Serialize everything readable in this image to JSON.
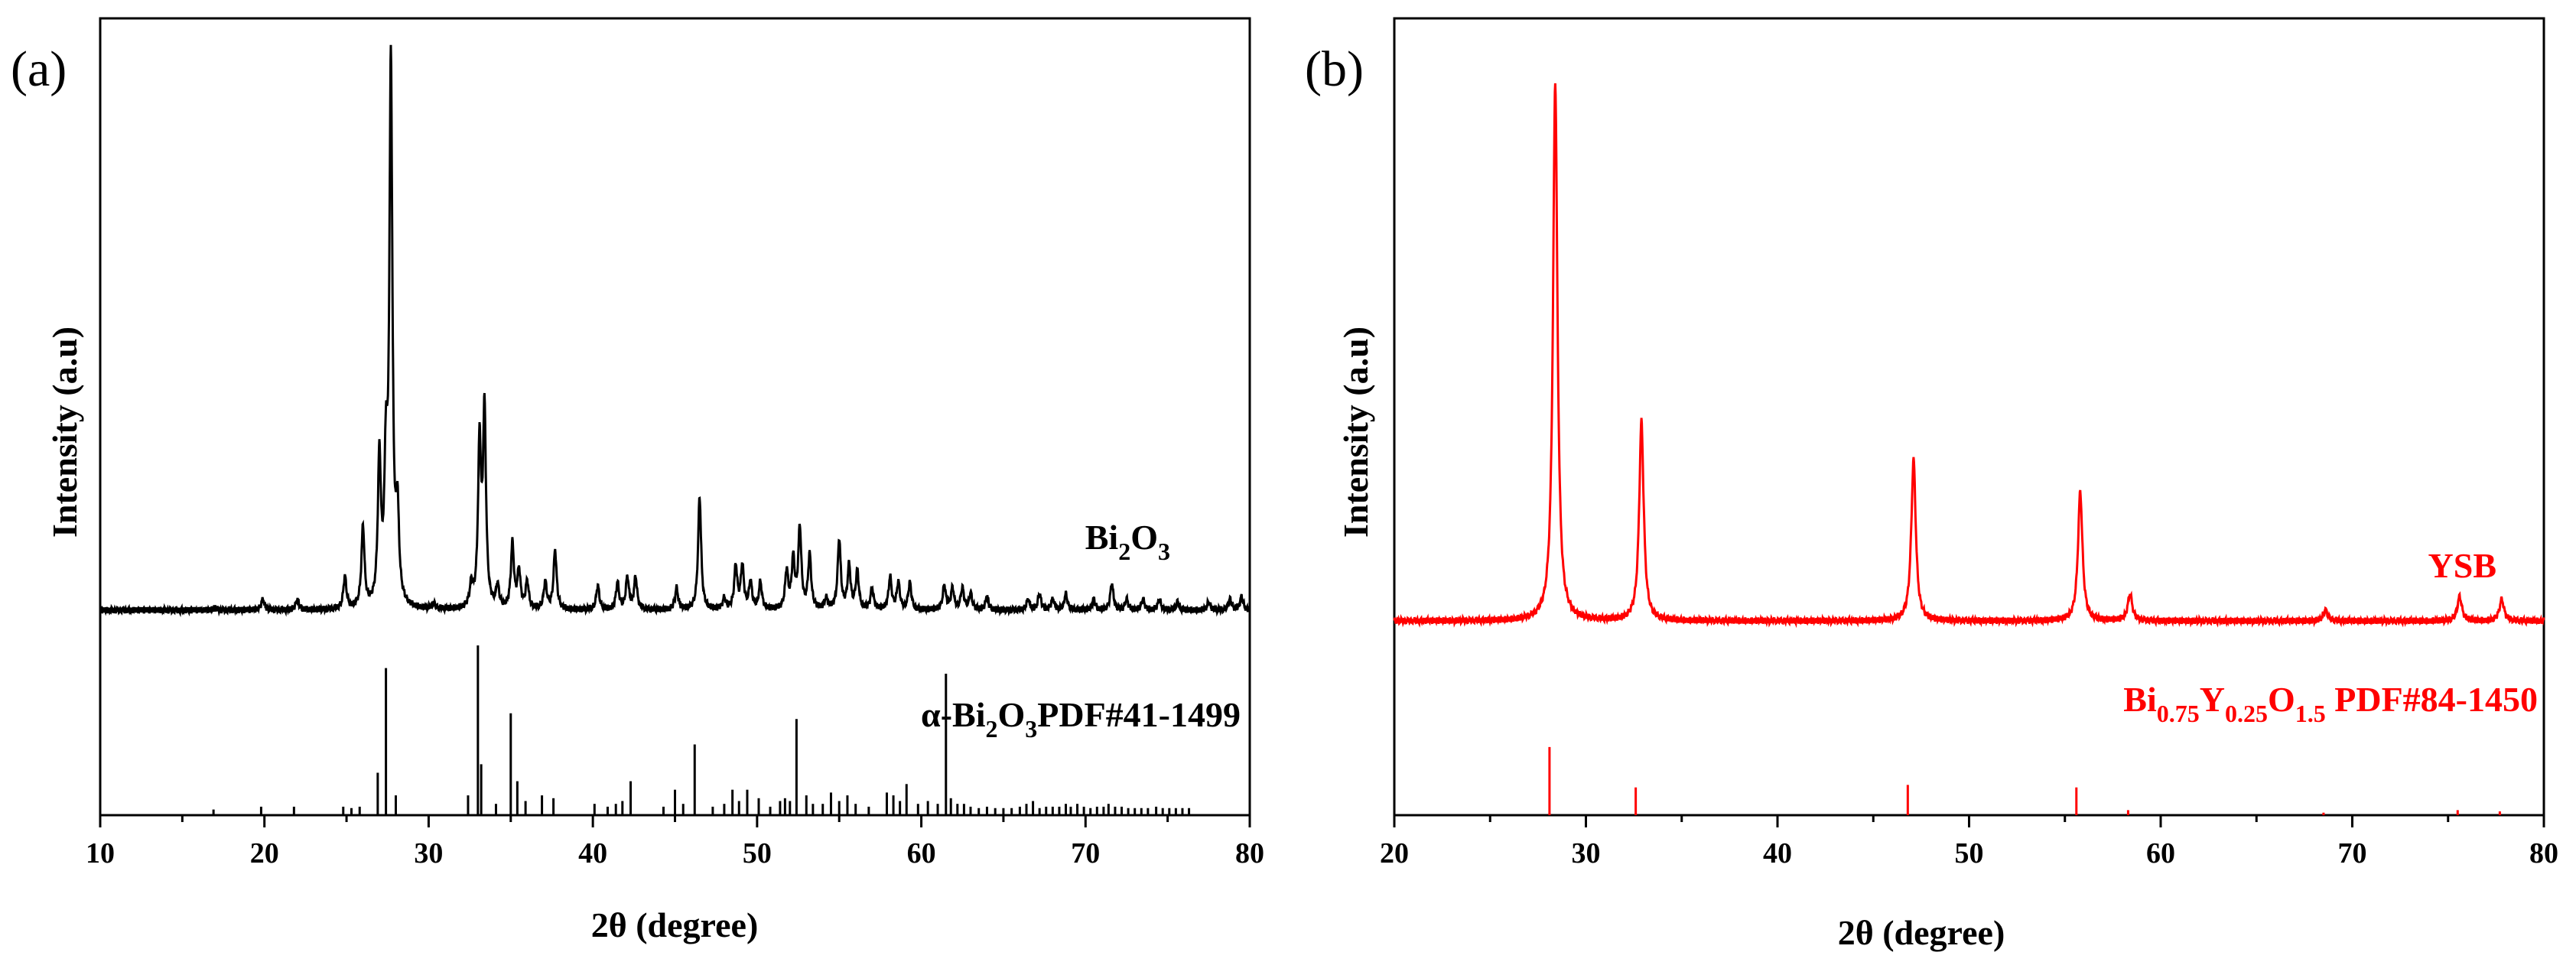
{
  "chart_data": [
    {
      "type": "line",
      "panel_label": "(a)",
      "xlabel": "2θ (degree)",
      "ylabel": "Intensity (a.u)",
      "xlim": [
        10,
        80
      ],
      "xticks": [
        10,
        20,
        30,
        40,
        50,
        60,
        70,
        80
      ],
      "color": "#000000",
      "series": [
        {
          "label_main": "Bi",
          "label_parts": [
            [
              "Bi",
              false
            ],
            [
              "2",
              true
            ],
            [
              "O",
              false
            ],
            [
              "3",
              true
            ]
          ],
          "kind": "profile",
          "baseline": 0.12,
          "peaks": [
            [
              17.0,
              0.005
            ],
            [
              19.9,
              0.02
            ],
            [
              22.0,
              0.02
            ],
            [
              24.9,
              0.06
            ],
            [
              26.0,
              0.15
            ],
            [
              27.0,
              0.27
            ],
            [
              27.4,
              0.24
            ],
            [
              27.7,
              1.0
            ],
            [
              28.1,
              0.16
            ],
            [
              30.3,
              0.01
            ],
            [
              32.6,
              0.04
            ],
            [
              33.1,
              0.3
            ],
            [
              33.4,
              0.36
            ],
            [
              34.2,
              0.04
            ],
            [
              35.1,
              0.12
            ],
            [
              35.5,
              0.07
            ],
            [
              36.0,
              0.05
            ],
            [
              37.1,
              0.05
            ],
            [
              37.7,
              0.11
            ],
            [
              40.3,
              0.045
            ],
            [
              41.5,
              0.05
            ],
            [
              42.1,
              0.06
            ],
            [
              42.6,
              0.06
            ],
            [
              45.1,
              0.04
            ],
            [
              46.5,
              0.21
            ],
            [
              48.0,
              0.02
            ],
            [
              48.7,
              0.08
            ],
            [
              49.1,
              0.08
            ],
            [
              49.6,
              0.05
            ],
            [
              50.2,
              0.05
            ],
            [
              51.8,
              0.07
            ],
            [
              52.2,
              0.09
            ],
            [
              52.6,
              0.15
            ],
            [
              53.2,
              0.1
            ],
            [
              54.2,
              0.02
            ],
            [
              55.0,
              0.13
            ],
            [
              55.6,
              0.08
            ],
            [
              56.1,
              0.07
            ],
            [
              57.0,
              0.04
            ],
            [
              58.1,
              0.06
            ],
            [
              58.6,
              0.05
            ],
            [
              59.3,
              0.05
            ],
            [
              61.4,
              0.045
            ],
            [
              61.9,
              0.04
            ],
            [
              62.5,
              0.04
            ],
            [
              63.0,
              0.03
            ],
            [
              64.0,
              0.025
            ],
            [
              66.5,
              0.02
            ],
            [
              67.2,
              0.03
            ],
            [
              68.0,
              0.02
            ],
            [
              68.8,
              0.03
            ],
            [
              70.5,
              0.02
            ],
            [
              71.6,
              0.05
            ],
            [
              72.5,
              0.02
            ],
            [
              73.5,
              0.02
            ],
            [
              74.5,
              0.02
            ],
            [
              75.6,
              0.015
            ],
            [
              77.5,
              0.015
            ],
            [
              78.8,
              0.02
            ],
            [
              79.5,
              0.025
            ]
          ]
        },
        {
          "label_main": "α-Bi",
          "label_parts": [
            [
              "α-Bi",
              false
            ],
            [
              "2",
              true
            ],
            [
              "O",
              false
            ],
            [
              "3",
              true
            ],
            [
              "PDF#41-1499",
              false
            ]
          ],
          "kind": "reference",
          "baseline": 0.0,
          "sticks": [
            [
              16.9,
              0.02
            ],
            [
              19.8,
              0.03
            ],
            [
              21.8,
              0.03
            ],
            [
              24.8,
              0.03
            ],
            [
              25.3,
              0.025
            ],
            [
              25.8,
              0.03
            ],
            [
              26.9,
              0.15
            ],
            [
              27.4,
              0.52
            ],
            [
              28.0,
              0.07
            ],
            [
              32.4,
              0.07
            ],
            [
              33.0,
              0.6
            ],
            [
              33.2,
              0.18
            ],
            [
              34.1,
              0.04
            ],
            [
              35.0,
              0.36
            ],
            [
              35.4,
              0.12
            ],
            [
              35.9,
              0.05
            ],
            [
              36.9,
              0.07
            ],
            [
              37.6,
              0.06
            ],
            [
              40.1,
              0.04
            ],
            [
              40.9,
              0.03
            ],
            [
              41.4,
              0.04
            ],
            [
              41.8,
              0.05
            ],
            [
              42.3,
              0.12
            ],
            [
              44.3,
              0.03
            ],
            [
              45.0,
              0.09
            ],
            [
              45.5,
              0.04
            ],
            [
              46.2,
              0.25
            ],
            [
              47.3,
              0.03
            ],
            [
              48.0,
              0.04
            ],
            [
              48.5,
              0.09
            ],
            [
              48.9,
              0.05
            ],
            [
              49.4,
              0.09
            ],
            [
              50.1,
              0.06
            ],
            [
              50.8,
              0.03
            ],
            [
              51.4,
              0.05
            ],
            [
              51.7,
              0.06
            ],
            [
              52.0,
              0.05
            ],
            [
              52.4,
              0.34
            ],
            [
              53.0,
              0.07
            ],
            [
              53.4,
              0.04
            ],
            [
              54.0,
              0.04
            ],
            [
              54.5,
              0.08
            ],
            [
              55.0,
              0.05
            ],
            [
              55.5,
              0.07
            ],
            [
              56.0,
              0.04
            ],
            [
              56.8,
              0.03
            ],
            [
              57.9,
              0.08
            ],
            [
              58.3,
              0.07
            ],
            [
              58.7,
              0.05
            ],
            [
              59.1,
              0.11
            ],
            [
              59.8,
              0.04
            ],
            [
              60.4,
              0.05
            ],
            [
              61.0,
              0.04
            ],
            [
              61.5,
              0.5
            ],
            [
              61.8,
              0.06
            ],
            [
              62.2,
              0.04
            ],
            [
              62.6,
              0.04
            ],
            [
              63.0,
              0.03
            ],
            [
              63.5,
              0.025
            ],
            [
              64.0,
              0.03
            ],
            [
              64.5,
              0.025
            ],
            [
              65.0,
              0.025
            ],
            [
              65.5,
              0.025
            ],
            [
              66.0,
              0.03
            ],
            [
              66.4,
              0.04
            ],
            [
              66.8,
              0.05
            ],
            [
              67.2,
              0.025
            ],
            [
              67.6,
              0.03
            ],
            [
              68.0,
              0.03
            ],
            [
              68.4,
              0.03
            ],
            [
              68.8,
              0.04
            ],
            [
              69.1,
              0.03
            ],
            [
              69.5,
              0.04
            ],
            [
              69.9,
              0.03
            ],
            [
              70.3,
              0.025
            ],
            [
              70.7,
              0.03
            ],
            [
              71.1,
              0.03
            ],
            [
              71.4,
              0.04
            ],
            [
              71.8,
              0.03
            ],
            [
              72.2,
              0.03
            ],
            [
              72.6,
              0.025
            ],
            [
              73.0,
              0.025
            ],
            [
              73.4,
              0.025
            ],
            [
              73.8,
              0.025
            ],
            [
              74.3,
              0.03
            ],
            [
              74.7,
              0.025
            ],
            [
              75.1,
              0.025
            ],
            [
              75.5,
              0.025
            ],
            [
              75.9,
              0.025
            ],
            [
              76.3,
              0.025
            ]
          ]
        }
      ]
    },
    {
      "type": "line",
      "panel_label": "(b)",
      "xlabel": "2θ (degree)",
      "ylabel": "Intensity (a.u)",
      "xlim": [
        20,
        80
      ],
      "xticks": [
        20,
        30,
        40,
        50,
        60,
        70,
        80
      ],
      "color": "#ff0000",
      "series": [
        {
          "label_main": "YSB",
          "label_parts": [
            [
              "YSB",
              false
            ]
          ],
          "kind": "profile",
          "baseline": 0.12,
          "peaks": [
            [
              28.4,
              1.0
            ],
            [
              32.9,
              0.37
            ],
            [
              47.1,
              0.3
            ],
            [
              55.8,
              0.24
            ],
            [
              58.4,
              0.05
            ],
            [
              68.6,
              0.02
            ],
            [
              75.6,
              0.045
            ],
            [
              77.8,
              0.04
            ]
          ]
        },
        {
          "label_main": "Bi",
          "label_parts": [
            [
              "Bi",
              false
            ],
            [
              "0.75",
              true
            ],
            [
              "Y",
              false
            ],
            [
              "0.25",
              true
            ],
            [
              "O",
              false
            ],
            [
              "1.5",
              true
            ],
            [
              " PDF#84-1450",
              false
            ]
          ],
          "kind": "reference",
          "baseline": 0.0,
          "sticks": [
            [
              28.1,
              0.27
            ],
            [
              32.6,
              0.11
            ],
            [
              46.8,
              0.12
            ],
            [
              55.6,
              0.11
            ],
            [
              58.3,
              0.02
            ],
            [
              68.5,
              0.01
            ],
            [
              75.5,
              0.02
            ],
            [
              77.7,
              0.015
            ]
          ]
        }
      ]
    }
  ]
}
